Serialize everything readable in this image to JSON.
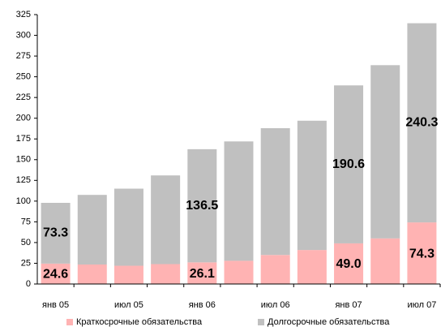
{
  "chart_data": {
    "type": "bar",
    "stacked": true,
    "categories": [
      "янв 05",
      null,
      "июл 05",
      null,
      "янв 06",
      null,
      "июл 06",
      null,
      "янв 07",
      null,
      "июл 07"
    ],
    "series": [
      {
        "name": "Краткосрочные обязательства",
        "color": "#ffb3b3",
        "values": [
          24.6,
          23.5,
          22,
          24,
          26.1,
          28,
          35,
          41,
          49.0,
          55,
          74.3
        ],
        "value_labels": [
          "24.6",
          null,
          null,
          null,
          "26.1",
          null,
          null,
          null,
          "49.0",
          null,
          "74.3"
        ]
      },
      {
        "name": "Долгосрочные обязательства",
        "color": "#c0c0c0",
        "values": [
          73.3,
          84,
          93,
          107,
          136.5,
          144,
          153,
          156,
          190.6,
          209,
          240.3
        ],
        "value_labels": [
          "73.3",
          null,
          null,
          null,
          "136.5",
          null,
          null,
          null,
          "190.6",
          null,
          "240.3"
        ]
      }
    ],
    "ylim": [
      0,
      325
    ],
    "yticks": [
      0,
      25,
      50,
      75,
      100,
      125,
      150,
      175,
      200,
      225,
      250,
      275,
      300,
      325
    ],
    "grid": false,
    "legend": "bottom"
  }
}
